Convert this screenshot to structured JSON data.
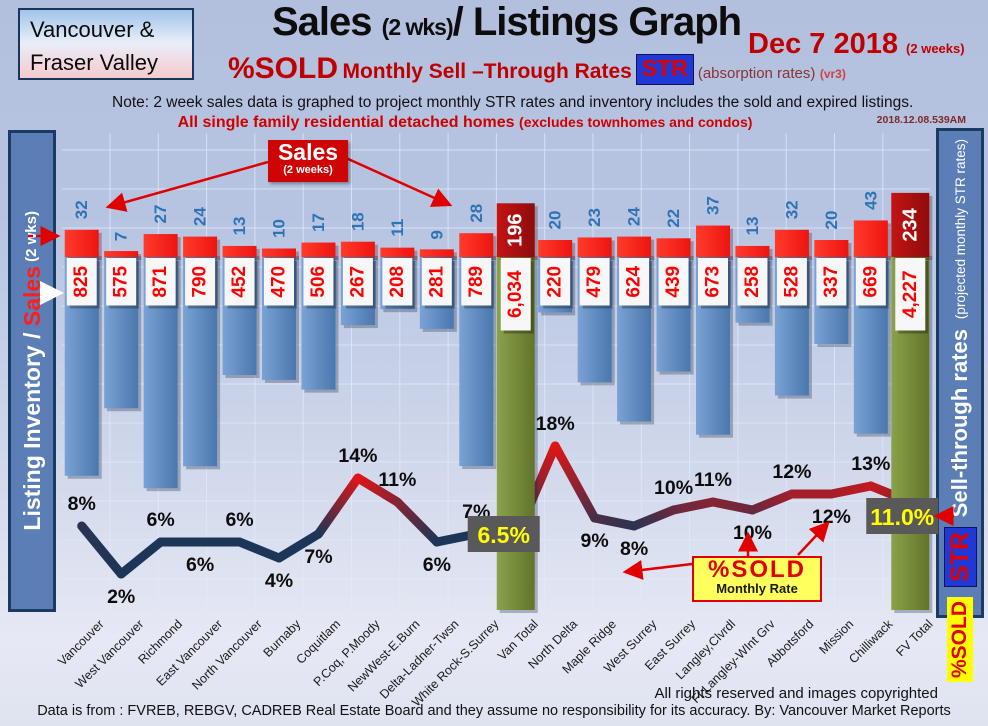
{
  "header": {
    "logo_line1": "Vancouver &",
    "logo_line2": "Fraser Valley",
    "title_main": "Sales",
    "title_mid": "(2 wks)",
    "title_rest": "/ Listings Graph",
    "date": "Dec 7 2018",
    "date_sub": "(2 weeks)",
    "percent_sold": "%SOLD",
    "str_phrase": "Monthly Sell –Through Rates",
    "str_chip": "STR",
    "absorption": "(absorption rates)",
    "version": "(vr3)",
    "note": "Note: 2 week sales data is graphed to project monthly STR rates and inventory includes the sold and expired listings.",
    "scope": "All single family residential detached homes",
    "scope_sub": "(excludes townhomes and condos)",
    "timestamp": "2018.12.08.539AM"
  },
  "left_axis": {
    "label_part1": "Listing Inventory / ",
    "label_sales": "Sales",
    "label_part2": " (2  wks)"
  },
  "right_axis": {
    "label": "Sell-through rates",
    "label_sub": "(projected monthly STR rates)",
    "chip_str": "STR",
    "chip_sold": "%SOLD"
  },
  "annotations": {
    "sales_box_title": "Sales",
    "sales_box_sub": "(2 weeks)",
    "sold_box_title": "%SOLD",
    "sold_box_sub": "Monthly Rate"
  },
  "footer": {
    "rights": "All rights reserved and  images copyrighted",
    "source": "Data is from : FVREB, REBGV, CADREB Real Estate Board and they assume no responsibility for its accuracy. By: Vancouver Market Reports"
  },
  "chart_data": {
    "type": "combo",
    "categories": [
      "Vancouver",
      "West Vancouver",
      "Richmond",
      "East Vancouver",
      "North Vancouver",
      "Burnaby",
      "Coquitlam",
      "P.Coq, P.Moody",
      "NewWest-E.Burn",
      "Delta-Ladner-Twsn",
      "White Rock-S.Surrey",
      "Van Total",
      "North Delta",
      "Maple Ridge",
      "West Surrey",
      "East Surrey",
      "Langley,Clvrdl",
      "Ft Langley-WInt Grv",
      "Abbotsford",
      "Mission",
      "Chilliwack",
      "FV Total"
    ],
    "series": [
      {
        "name": "Sales (2 weeks)",
        "type": "bar",
        "values": [
          32,
          7,
          27,
          24,
          13,
          10,
          17,
          18,
          11,
          9,
          28,
          196,
          20,
          23,
          24,
          22,
          37,
          13,
          32,
          20,
          43,
          234
        ]
      },
      {
        "name": "Listing Inventory (includes sold and expired listings)",
        "type": "bar",
        "values": [
          825,
          575,
          871,
          790,
          452,
          470,
          506,
          267,
          208,
          281,
          789,
          6034,
          220,
          479,
          624,
          439,
          673,
          258,
          528,
          337,
          669,
          4227
        ]
      },
      {
        "name": "%SOLD projected monthly sell-through rate",
        "type": "line",
        "values": [
          8,
          2,
          6,
          6,
          6,
          4,
          7,
          14,
          11,
          6,
          7,
          6.5,
          18,
          9,
          8,
          10,
          11,
          10,
          12,
          12,
          13,
          11
        ],
        "labels": [
          "8%",
          "2%",
          "6%",
          "6%",
          "6%",
          "4%",
          "7%",
          "14%",
          "11%",
          "6%",
          "7%",
          "6.5%",
          "18%",
          "9%",
          "8%",
          "10%",
          "11%",
          "10%",
          "12%",
          "12%",
          "13%",
          "11.0%"
        ],
        "label_side": [
          "above",
          "below",
          "above",
          "below",
          "above",
          "below",
          "below",
          "above",
          "above",
          "below",
          "above",
          "box",
          "above",
          "below",
          "below",
          "above",
          "above",
          "below",
          "above",
          "below",
          "above",
          "box"
        ]
      }
    ],
    "total_columns": [
      "Van Total",
      "FV Total"
    ],
    "total_indices": [
      11,
      21
    ],
    "ylim_percent": [
      0,
      20
    ],
    "legend_position": "none",
    "grid": true,
    "colors": {
      "sales_bar": "#ee1410",
      "sales_bar_total": "#ad0c0c",
      "inventory_bar": "#5b87c0",
      "inventory_bar_total": "#778b3d",
      "sales_number": "#2e74b5",
      "inventory_number": "#ff0000",
      "line_low": "#1d3557",
      "line_high": "#e01515",
      "total_label_box": "#595959",
      "total_label_text": "#ffff00"
    }
  }
}
